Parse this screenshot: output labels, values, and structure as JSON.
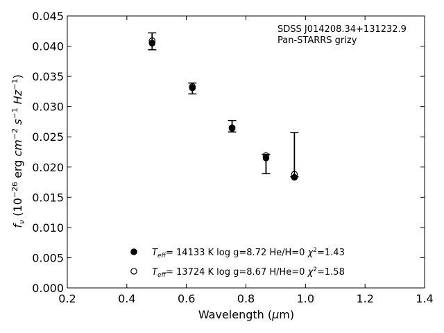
{
  "chart_data": {
    "type": "scatter",
    "annotation_lines": [
      "SDSS J014208.34+131232.9",
      "Pan-STARRS grizy"
    ],
    "xlabel": "Wavelength (μm)",
    "ylabel": "f_ν (10^-26 erg cm^-2 s^-1 Hz^-1)",
    "xlim": [
      0.2,
      1.4
    ],
    "ylim": [
      0.0,
      0.045
    ],
    "x_ticks": [
      "0.2",
      "0.4",
      "0.6",
      "0.8",
      "1.0",
      "1.2",
      "1.4"
    ],
    "y_ticks": [
      "0.000",
      "0.005",
      "0.010",
      "0.015",
      "0.020",
      "0.025",
      "0.030",
      "0.035",
      "0.040",
      "0.045"
    ],
    "grid": false,
    "legend_position": "bottom-center",
    "observed": {
      "x": [
        0.4849,
        0.6201,
        0.7535,
        0.8674,
        0.9628
      ],
      "y": [
        0.0408,
        0.033,
        0.0267,
        0.0205,
        0.022
      ],
      "y_low": [
        0.0394,
        0.0321,
        0.0258,
        0.0189,
        0.0184
      ],
      "y_high": [
        0.0422,
        0.0339,
        0.0277,
        0.0221,
        0.0257
      ]
    },
    "series": [
      {
        "name": "T_eff = 14133 K  log g=8.72  He/H=0  χ²=1.43",
        "legend": {
          "teff": "14133",
          "logg": "8.72",
          "comp": "He/H=0",
          "chi2": "1.43"
        },
        "marker": "filled",
        "x": [
          0.4849,
          0.6201,
          0.7535,
          0.8674,
          0.9628
        ],
        "y": [
          0.0405,
          0.0331,
          0.0264,
          0.0215,
          0.0183
        ]
      },
      {
        "name": "T_eff = 13724 K  log g=8.67  H/He=0  χ²=1.58",
        "legend": {
          "teff": "13724",
          "logg": "8.67",
          "comp": "H/He=0",
          "chi2": "1.58"
        },
        "marker": "open",
        "x": [
          0.4849,
          0.6201,
          0.7535,
          0.8674,
          0.9628
        ],
        "y": [
          0.0409,
          0.0333,
          0.0265,
          0.0219,
          0.0188
        ]
      }
    ],
    "colors": {
      "marker": "#000000",
      "axes": "#000000",
      "background": "#ffffff"
    }
  }
}
